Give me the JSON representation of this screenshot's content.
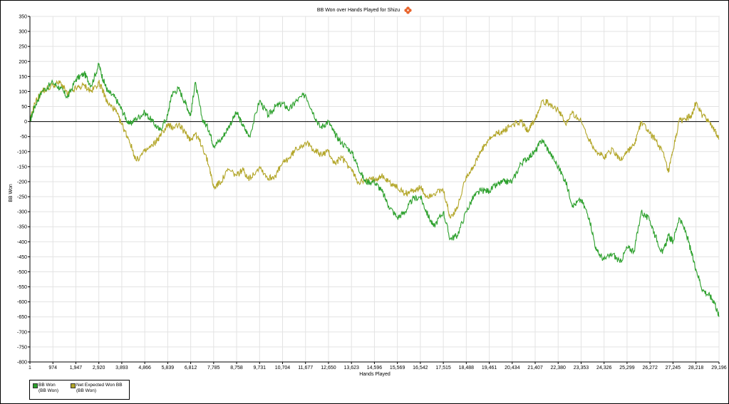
{
  "chart_data": {
    "type": "line",
    "title": "BB Won over Hands Played for Shizu",
    "xlabel": "Hands Played",
    "ylabel": "BB Won",
    "xlim": [
      1,
      29196
    ],
    "ylim": [
      -800,
      350
    ],
    "x_ticks": [
      1,
      974,
      1947,
      2920,
      3893,
      4866,
      5839,
      6812,
      7785,
      8758,
      9731,
      10704,
      11677,
      12650,
      13623,
      14596,
      15569,
      16542,
      17515,
      18488,
      19461,
      20434,
      21407,
      22380,
      23353,
      24326,
      25299,
      26272,
      27245,
      28218,
      29196
    ],
    "x_tick_labels": [
      "1",
      "974",
      "1,947",
      "2,920",
      "3,893",
      "4,866",
      "5,839",
      "6,812",
      "7,785",
      "8,758",
      "9,731",
      "10,704",
      "11,677",
      "12,650",
      "13,623",
      "14,596",
      "15,569",
      "16,542",
      "17,515",
      "18,488",
      "19,461",
      "20,434",
      "21,407",
      "22,380",
      "23,353",
      "24,326",
      "25,299",
      "26,272",
      "27,245",
      "28,218",
      "29,196"
    ],
    "y_ticks": [
      350,
      300,
      250,
      200,
      150,
      100,
      50,
      0,
      -50,
      -100,
      -150,
      -200,
      -250,
      -300,
      -350,
      -400,
      -450,
      -500,
      -550,
      -600,
      -650,
      -700,
      -750,
      -800
    ],
    "grid": true,
    "zero_line": true,
    "legend_position": "bottom-left",
    "series": [
      {
        "name": "BB Won",
        "name_sub": "(BB Won)",
        "color": "#2ca02c",
        "x": [
          1,
          200,
          500,
          974,
          1300,
          1600,
          1947,
          2300,
          2600,
          2920,
          3100,
          3300,
          3600,
          3893,
          4200,
          4500,
          4866,
          5200,
          5500,
          5839,
          6000,
          6300,
          6600,
          6812,
          7000,
          7300,
          7600,
          7785,
          8100,
          8400,
          8758,
          9000,
          9300,
          9731,
          10100,
          10400,
          10704,
          11000,
          11300,
          11677,
          12000,
          12300,
          12650,
          12900,
          13200,
          13623,
          13900,
          14200,
          14596,
          14900,
          15200,
          15569,
          15900,
          16200,
          16542,
          16800,
          17100,
          17515,
          17800,
          18100,
          18488,
          18800,
          19100,
          19461,
          19800,
          20100,
          20434,
          20800,
          21100,
          21407,
          21700,
          22000,
          22380,
          22700,
          23000,
          23353,
          23700,
          24000,
          24326,
          24700,
          25000,
          25299,
          25600,
          25900,
          26272,
          26500,
          26800,
          27050,
          27245,
          27500,
          27800,
          28000,
          28218,
          28500,
          28800,
          29000,
          29196
        ],
        "y": [
          0,
          50,
          100,
          130,
          110,
          80,
          140,
          160,
          120,
          190,
          140,
          100,
          80,
          40,
          -10,
          10,
          30,
          0,
          -30,
          20,
          90,
          110,
          60,
          20,
          130,
          10,
          -30,
          -80,
          -60,
          -20,
          30,
          -10,
          -50,
          70,
          20,
          50,
          60,
          40,
          70,
          90,
          30,
          -20,
          0,
          -40,
          -70,
          -100,
          -150,
          -200,
          -200,
          -230,
          -280,
          -320,
          -300,
          -260,
          -250,
          -300,
          -350,
          -300,
          -390,
          -380,
          -300,
          -250,
          -230,
          -230,
          -210,
          -200,
          -200,
          -140,
          -120,
          -100,
          -60,
          -100,
          -150,
          -200,
          -280,
          -260,
          -320,
          -430,
          -460,
          -440,
          -470,
          -420,
          -430,
          -300,
          -330,
          -380,
          -440,
          -380,
          -400,
          -320,
          -370,
          -430,
          -490,
          -560,
          -580,
          -600,
          -650
        ]
      },
      {
        "name": "Net Expected Won BB",
        "name_sub": "(BB Won)",
        "color": "#b3a629",
        "x": [
          1,
          200,
          500,
          974,
          1300,
          1600,
          1947,
          2300,
          2600,
          2920,
          3100,
          3300,
          3600,
          3893,
          4200,
          4500,
          4866,
          5200,
          5500,
          5839,
          6000,
          6300,
          6600,
          6812,
          7000,
          7300,
          7600,
          7785,
          8100,
          8400,
          8758,
          9000,
          9300,
          9731,
          10100,
          10400,
          10704,
          11000,
          11300,
          11677,
          12000,
          12300,
          12650,
          12900,
          13200,
          13623,
          13900,
          14200,
          14596,
          14900,
          15200,
          15569,
          15900,
          16200,
          16542,
          16800,
          17100,
          17515,
          17800,
          18100,
          18488,
          18800,
          19100,
          19461,
          19800,
          20100,
          20434,
          20800,
          21100,
          21407,
          21700,
          22000,
          22380,
          22700,
          23000,
          23353,
          23700,
          24000,
          24326,
          24700,
          25000,
          25299,
          25600,
          25900,
          26272,
          26500,
          26800,
          27050,
          27245,
          27500,
          27800,
          28000,
          28218,
          28500,
          28800,
          29000,
          29196
        ],
        "y": [
          0,
          60,
          100,
          120,
          130,
          90,
          110,
          120,
          100,
          130,
          100,
          60,
          40,
          -10,
          -60,
          -130,
          -100,
          -80,
          -50,
          -10,
          -20,
          -10,
          -40,
          -60,
          -40,
          -80,
          -150,
          -220,
          -200,
          -160,
          -180,
          -160,
          -190,
          -150,
          -190,
          -180,
          -140,
          -120,
          -90,
          -70,
          -90,
          -110,
          -100,
          -140,
          -120,
          -160,
          -200,
          -200,
          -190,
          -180,
          -200,
          -220,
          -240,
          -230,
          -220,
          -250,
          -240,
          -230,
          -320,
          -290,
          -180,
          -150,
          -100,
          -60,
          -40,
          -30,
          -10,
          0,
          -30,
          10,
          70,
          60,
          40,
          -10,
          30,
          0,
          -60,
          -100,
          -120,
          -90,
          -130,
          -100,
          -80,
          0,
          -40,
          -60,
          -100,
          -170,
          -100,
          0,
          10,
          20,
          60,
          20,
          0,
          -30,
          -60
        ]
      }
    ]
  }
}
